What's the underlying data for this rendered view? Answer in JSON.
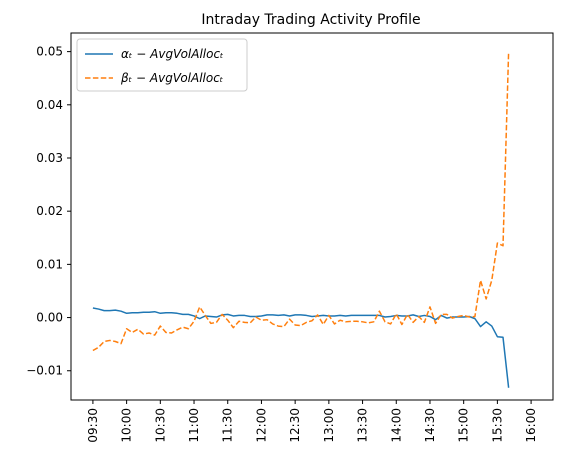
{
  "chart_data": {
    "type": "line",
    "title": "Intraday Trading Activity Profile",
    "xlabel": "",
    "ylabel": "",
    "x_ticks": [
      "09:30",
      "10:00",
      "10:30",
      "11:00",
      "11:30",
      "12:00",
      "12:30",
      "13:00",
      "13:30",
      "14:00",
      "14:30",
      "15:00",
      "15:30",
      "16:00"
    ],
    "ylim": [
      -0.0155,
      0.0535
    ],
    "y_ticks": [
      -0.01,
      0.0,
      0.01,
      0.02,
      0.03,
      0.04,
      0.05
    ],
    "y_tick_labels": [
      "−0.01",
      "0.00",
      "0.01",
      "0.02",
      "0.03",
      "0.04",
      "0.05"
    ],
    "grid": false,
    "legend_position": "upper-left",
    "x_start": "09:30",
    "x_step_minutes": 5,
    "series": [
      {
        "name": "αₜ − AvgVolAllocₜ",
        "color": "#1f77b4",
        "style": "solid",
        "values": [
          0.0018,
          0.0016,
          0.0013,
          0.0013,
          0.0014,
          0.0012,
          0.0008,
          0.0009,
          0.0009,
          0.001,
          0.001,
          0.0011,
          0.0008,
          0.0009,
          0.0009,
          0.0008,
          0.0006,
          0.0006,
          0.0003,
          -0.0002,
          0.0003,
          0.0002,
          0.0001,
          0.0005,
          0.0006,
          0.0003,
          0.0004,
          0.0004,
          0.0002,
          0.0002,
          0.0003,
          0.0005,
          0.0005,
          0.0004,
          0.0005,
          0.0003,
          0.0005,
          0.0005,
          0.0004,
          0.0002,
          0.0003,
          0.0004,
          0.0003,
          0.0003,
          0.0004,
          0.0003,
          0.0004,
          0.0004,
          0.0004,
          0.0004,
          0.0004,
          0.0004,
          0.0001,
          0.0002,
          0.0004,
          0.0003,
          0.0003,
          0.0005,
          0.0002,
          0.0004,
          0.0002,
          -0.0004,
          0.0004,
          -0.0001,
          0.0001,
          0.0001,
          0.0001,
          0.0002,
          -0.0002,
          -0.0017,
          -0.0008,
          -0.0016,
          -0.0036,
          -0.0037,
          -0.0132
        ]
      },
      {
        "name": "βₜ − AvgVolAllocₜ",
        "color": "#ff7f0e",
        "style": "dashed",
        "values": [
          -0.0062,
          -0.0056,
          -0.0045,
          -0.0043,
          -0.0045,
          -0.0049,
          -0.0021,
          -0.0028,
          -0.0022,
          -0.0031,
          -0.0029,
          -0.0033,
          -0.0016,
          -0.0028,
          -0.0029,
          -0.0023,
          -0.0018,
          -0.0021,
          -0.0007,
          0.002,
          0.0004,
          -0.0011,
          -0.0009,
          0.0006,
          -0.0005,
          -0.0019,
          -0.0007,
          -0.0009,
          -0.001,
          0.0001,
          -0.0005,
          -0.0004,
          -0.0012,
          -0.0016,
          -0.0017,
          -0.0003,
          -0.0014,
          -0.0015,
          -0.0009,
          -0.0006,
          0.0005,
          -0.0013,
          0.0004,
          -0.0012,
          -0.0005,
          -0.0008,
          -0.0007,
          -0.0007,
          -0.0008,
          -0.001,
          -0.0008,
          0.0012,
          -0.0008,
          -0.0012,
          0.0007,
          -0.0013,
          0.0006,
          -0.0009,
          0.0002,
          -0.0009,
          0.002,
          -0.0011,
          0.0006,
          0.0006,
          -0.0001,
          0.0002,
          0.0004,
          0.0001,
          0.0002,
          0.007,
          0.0035,
          0.007,
          0.014,
          0.0135,
          0.05
        ]
      }
    ]
  }
}
